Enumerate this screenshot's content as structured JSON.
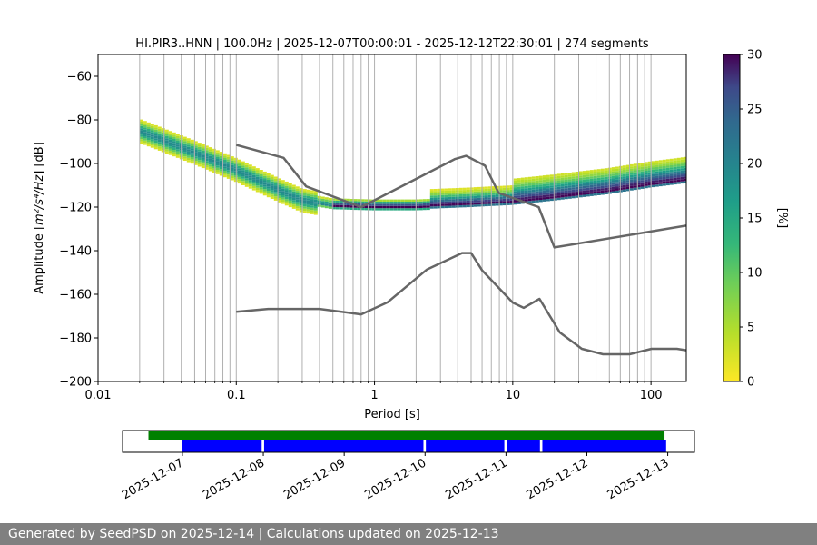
{
  "chart_data": {
    "type": "heatmap",
    "title": "HI.PIR3..HNN | 100.0Hz | 2025-12-07T00:00:01 - 2025-12-12T22:30:01 | 274 segments",
    "xlabel": "Period [s]",
    "ylabel_prefix": "Amplitude [",
    "ylabel_unit": "m²/s⁴/Hz",
    "ylabel_suffix": "] [dB]",
    "x_scale": "log",
    "xlim": [
      0.01,
      180
    ],
    "ylim": [
      -200,
      -50
    ],
    "x_ticks": [
      0.01,
      0.1,
      1,
      10,
      100
    ],
    "x_tick_labels": [
      "0.01",
      "0.1",
      "1",
      "10",
      "100"
    ],
    "y_ticks": [
      -200,
      -180,
      -160,
      -140,
      -120,
      -100,
      -80,
      -60
    ],
    "y_tick_labels": [
      "−200",
      "−180",
      "−160",
      "−140",
      "−120",
      "−100",
      "−80",
      "−60"
    ],
    "colorbar": {
      "label": "[%]",
      "range": [
        0,
        30
      ],
      "ticks": [
        0,
        5,
        10,
        15,
        20,
        25,
        30
      ],
      "tick_labels": [
        "0",
        "5",
        "10",
        "15",
        "20",
        "25",
        "30"
      ]
    },
    "period_grid_lines": [
      0.02,
      0.03,
      0.04,
      0.05,
      0.06,
      0.07,
      0.08,
      0.09,
      0.2,
      0.3,
      0.4,
      0.5,
      0.6,
      0.7,
      0.8,
      0.9,
      2,
      3,
      4,
      5,
      6,
      7,
      8,
      9,
      20,
      30,
      40,
      50,
      60,
      70,
      80,
      90
    ],
    "noise_models": [
      {
        "name": "high-noise-model",
        "points": [
          [
            0.1,
            -91.5
          ],
          [
            0.22,
            -97.4
          ],
          [
            0.32,
            -110.5
          ],
          [
            0.8,
            -120
          ],
          [
            3.8,
            -98
          ],
          [
            4.6,
            -96.5
          ],
          [
            6.3,
            -101
          ],
          [
            7.9,
            -113.5
          ],
          [
            15.4,
            -120
          ],
          [
            20,
            -138.5
          ],
          [
            180,
            -128.5
          ]
        ]
      },
      {
        "name": "low-noise-model",
        "points": [
          [
            0.1,
            -168
          ],
          [
            0.17,
            -166.7
          ],
          [
            0.4,
            -166.7
          ],
          [
            0.8,
            -169.2
          ],
          [
            1.24,
            -163.7
          ],
          [
            2.4,
            -148.6
          ],
          [
            4.3,
            -141.1
          ],
          [
            5.0,
            -141.1
          ],
          [
            6.0,
            -149
          ],
          [
            10,
            -163.8
          ],
          [
            12,
            -166.2
          ],
          [
            15.6,
            -162.1
          ],
          [
            21.9,
            -177.5
          ],
          [
            31.6,
            -185
          ],
          [
            45,
            -187.5
          ],
          [
            70,
            -187.5
          ],
          [
            101,
            -185
          ],
          [
            154,
            -185
          ],
          [
            180,
            -185.7
          ]
        ]
      }
    ],
    "density_ridge": [
      [
        0.02,
        -85
      ],
      [
        0.05,
        -95
      ],
      [
        0.1,
        -103
      ],
      [
        0.2,
        -112
      ],
      [
        0.3,
        -117
      ],
      [
        0.5,
        -119.5
      ],
      [
        1,
        -120
      ],
      [
        2,
        -120
      ],
      [
        5,
        -119
      ],
      [
        10,
        -118
      ],
      [
        20,
        -116
      ],
      [
        50,
        -113
      ],
      [
        100,
        -110
      ],
      [
        180,
        -108
      ]
    ],
    "timeline": {
      "date_labels": [
        "2025-12-07",
        "2025-12-08",
        "2025-12-09",
        "2025-12-10",
        "2025-12-11",
        "2025-12-12",
        "2025-12-13"
      ],
      "green_span": [
        -0.42,
        5.96
      ],
      "blue_segments": [
        [
          0,
          0.98
        ],
        [
          1.01,
          2.98
        ],
        [
          3.01,
          3.98
        ],
        [
          4.01,
          4.42
        ],
        [
          4.45,
          5.98
        ]
      ],
      "xlim": [
        -0.74,
        6.33
      ],
      "green_color": "#008000",
      "blue_color": "#0000ff"
    }
  },
  "footer": {
    "text": "Generated by SeedPSD on 2025-12-14 | Calculations updated on 2025-12-13"
  },
  "colors": {
    "model_line": "#666666",
    "grid": "#b0b0b0"
  }
}
